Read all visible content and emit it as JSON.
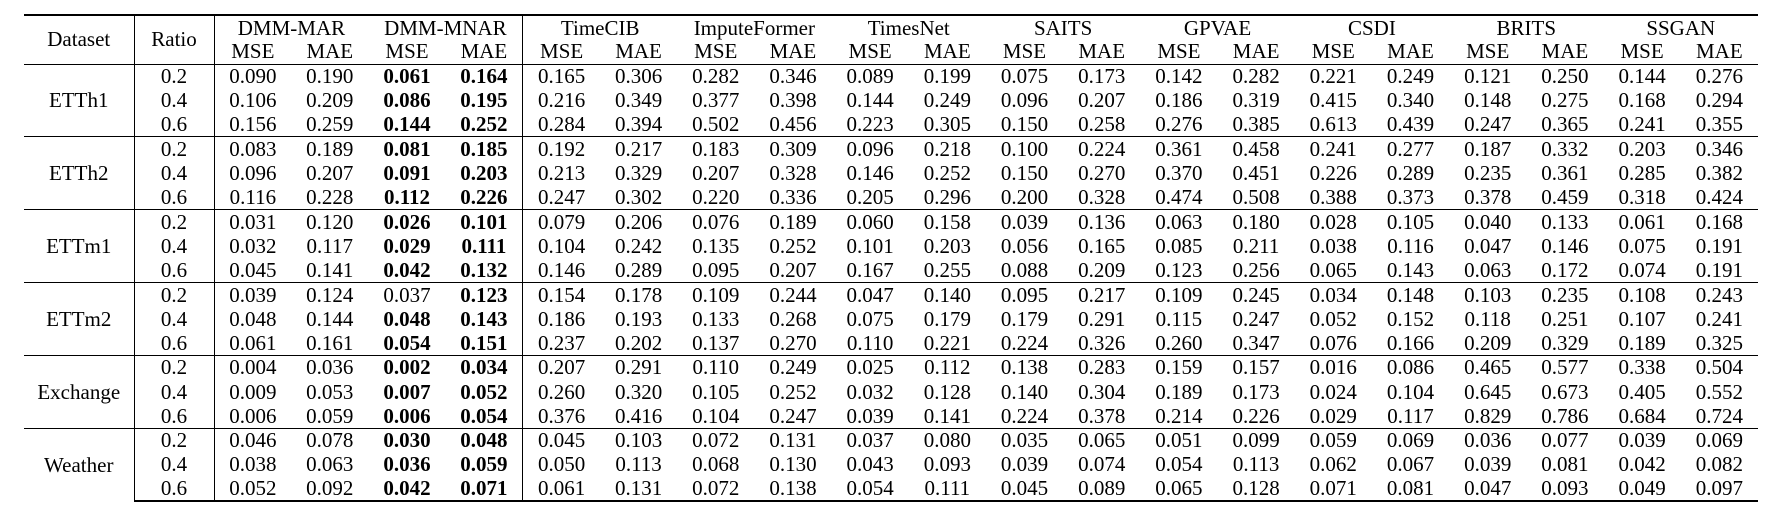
{
  "columns": {
    "dataset": "Dataset",
    "ratio": "Ratio",
    "models": [
      "DMM-MAR",
      "DMM-MNAR",
      "TimeCIB",
      "ImputeFormer",
      "TimesNet",
      "SAITS",
      "GPVAE",
      "CSDI",
      "BRITS",
      "SSGAN"
    ],
    "metrics": [
      "MSE",
      "MAE"
    ]
  },
  "groups": [
    {
      "dataset": "ETTh1",
      "rows": [
        {
          "ratio": "0.2",
          "values": [
            "0.090",
            "0.190",
            "0.061",
            "0.164",
            "0.165",
            "0.306",
            "0.282",
            "0.346",
            "0.089",
            "0.199",
            "0.075",
            "0.173",
            "0.142",
            "0.282",
            "0.221",
            "0.249",
            "0.121",
            "0.250",
            "0.144",
            "0.276"
          ],
          "bold": [
            2,
            3
          ]
        },
        {
          "ratio": "0.4",
          "values": [
            "0.106",
            "0.209",
            "0.086",
            "0.195",
            "0.216",
            "0.349",
            "0.377",
            "0.398",
            "0.144",
            "0.249",
            "0.096",
            "0.207",
            "0.186",
            "0.319",
            "0.415",
            "0.340",
            "0.148",
            "0.275",
            "0.168",
            "0.294"
          ],
          "bold": [
            2,
            3
          ]
        },
        {
          "ratio": "0.6",
          "values": [
            "0.156",
            "0.259",
            "0.144",
            "0.252",
            "0.284",
            "0.394",
            "0.502",
            "0.456",
            "0.223",
            "0.305",
            "0.150",
            "0.258",
            "0.276",
            "0.385",
            "0.613",
            "0.439",
            "0.247",
            "0.365",
            "0.241",
            "0.355"
          ],
          "bold": [
            2,
            3
          ]
        }
      ]
    },
    {
      "dataset": "ETTh2",
      "rows": [
        {
          "ratio": "0.2",
          "values": [
            "0.083",
            "0.189",
            "0.081",
            "0.185",
            "0.192",
            "0.217",
            "0.183",
            "0.309",
            "0.096",
            "0.218",
            "0.100",
            "0.224",
            "0.361",
            "0.458",
            "0.241",
            "0.277",
            "0.187",
            "0.332",
            "0.203",
            "0.346"
          ],
          "bold": [
            2,
            3
          ]
        },
        {
          "ratio": "0.4",
          "values": [
            "0.096",
            "0.207",
            "0.091",
            "0.203",
            "0.213",
            "0.329",
            "0.207",
            "0.328",
            "0.146",
            "0.252",
            "0.150",
            "0.270",
            "0.370",
            "0.451",
            "0.226",
            "0.289",
            "0.235",
            "0.361",
            "0.285",
            "0.382"
          ],
          "bold": [
            2,
            3
          ]
        },
        {
          "ratio": "0.6",
          "values": [
            "0.116",
            "0.228",
            "0.112",
            "0.226",
            "0.247",
            "0.302",
            "0.220",
            "0.336",
            "0.205",
            "0.296",
            "0.200",
            "0.328",
            "0.474",
            "0.508",
            "0.388",
            "0.373",
            "0.378",
            "0.459",
            "0.318",
            "0.424"
          ],
          "bold": [
            2,
            3
          ]
        }
      ]
    },
    {
      "dataset": "ETTm1",
      "rows": [
        {
          "ratio": "0.2",
          "values": [
            "0.031",
            "0.120",
            "0.026",
            "0.101",
            "0.079",
            "0.206",
            "0.076",
            "0.189",
            "0.060",
            "0.158",
            "0.039",
            "0.136",
            "0.063",
            "0.180",
            "0.028",
            "0.105",
            "0.040",
            "0.133",
            "0.061",
            "0.168"
          ],
          "bold": [
            2,
            3
          ]
        },
        {
          "ratio": "0.4",
          "values": [
            "0.032",
            "0.117",
            "0.029",
            "0.111",
            "0.104",
            "0.242",
            "0.135",
            "0.252",
            "0.101",
            "0.203",
            "0.056",
            "0.165",
            "0.085",
            "0.211",
            "0.038",
            "0.116",
            "0.047",
            "0.146",
            "0.075",
            "0.191"
          ],
          "bold": [
            2,
            3
          ]
        },
        {
          "ratio": "0.6",
          "values": [
            "0.045",
            "0.141",
            "0.042",
            "0.132",
            "0.146",
            "0.289",
            "0.095",
            "0.207",
            "0.167",
            "0.255",
            "0.088",
            "0.209",
            "0.123",
            "0.256",
            "0.065",
            "0.143",
            "0.063",
            "0.172",
            "0.074",
            "0.191"
          ],
          "bold": [
            2,
            3
          ]
        }
      ]
    },
    {
      "dataset": "ETTm2",
      "rows": [
        {
          "ratio": "0.2",
          "values": [
            "0.039",
            "0.124",
            "0.037",
            "0.123",
            "0.154",
            "0.178",
            "0.109",
            "0.244",
            "0.047",
            "0.140",
            "0.095",
            "0.217",
            "0.109",
            "0.245",
            "0.034",
            "0.148",
            "0.103",
            "0.235",
            "0.108",
            "0.243"
          ],
          "bold": [
            3
          ]
        },
        {
          "ratio": "0.4",
          "values": [
            "0.048",
            "0.144",
            "0.048",
            "0.143",
            "0.186",
            "0.193",
            "0.133",
            "0.268",
            "0.075",
            "0.179",
            "0.179",
            "0.291",
            "0.115",
            "0.247",
            "0.052",
            "0.152",
            "0.118",
            "0.251",
            "0.107",
            "0.241"
          ],
          "bold": [
            2,
            3
          ]
        },
        {
          "ratio": "0.6",
          "values": [
            "0.061",
            "0.161",
            "0.054",
            "0.151",
            "0.237",
            "0.202",
            "0.137",
            "0.270",
            "0.110",
            "0.221",
            "0.224",
            "0.326",
            "0.260",
            "0.347",
            "0.076",
            "0.166",
            "0.209",
            "0.329",
            "0.189",
            "0.325"
          ],
          "bold": [
            2,
            3
          ]
        }
      ]
    },
    {
      "dataset": "Exchange",
      "rows": [
        {
          "ratio": "0.2",
          "values": [
            "0.004",
            "0.036",
            "0.002",
            "0.034",
            "0.207",
            "0.291",
            "0.110",
            "0.249",
            "0.025",
            "0.112",
            "0.138",
            "0.283",
            "0.159",
            "0.157",
            "0.016",
            "0.086",
            "0.465",
            "0.577",
            "0.338",
            "0.504"
          ],
          "bold": [
            2,
            3
          ]
        },
        {
          "ratio": "0.4",
          "values": [
            "0.009",
            "0.053",
            "0.007",
            "0.052",
            "0.260",
            "0.320",
            "0.105",
            "0.252",
            "0.032",
            "0.128",
            "0.140",
            "0.304",
            "0.189",
            "0.173",
            "0.024",
            "0.104",
            "0.645",
            "0.673",
            "0.405",
            "0.552"
          ],
          "bold": [
            2,
            3
          ]
        },
        {
          "ratio": "0.6",
          "values": [
            "0.006",
            "0.059",
            "0.006",
            "0.054",
            "0.376",
            "0.416",
            "0.104",
            "0.247",
            "0.039",
            "0.141",
            "0.224",
            "0.378",
            "0.214",
            "0.226",
            "0.029",
            "0.117",
            "0.829",
            "0.786",
            "0.684",
            "0.724"
          ],
          "bold": [
            2,
            3
          ]
        }
      ]
    },
    {
      "dataset": "Weather",
      "rows": [
        {
          "ratio": "0.2",
          "values": [
            "0.046",
            "0.078",
            "0.030",
            "0.048",
            "0.045",
            "0.103",
            "0.072",
            "0.131",
            "0.037",
            "0.080",
            "0.035",
            "0.065",
            "0.051",
            "0.099",
            "0.059",
            "0.069",
            "0.036",
            "0.077",
            "0.039",
            "0.069"
          ],
          "bold": [
            2,
            3
          ]
        },
        {
          "ratio": "0.4",
          "values": [
            "0.038",
            "0.063",
            "0.036",
            "0.059",
            "0.050",
            "0.113",
            "0.068",
            "0.130",
            "0.043",
            "0.093",
            "0.039",
            "0.074",
            "0.054",
            "0.113",
            "0.062",
            "0.067",
            "0.039",
            "0.081",
            "0.042",
            "0.082"
          ],
          "bold": [
            2,
            3
          ]
        },
        {
          "ratio": "0.6",
          "values": [
            "0.052",
            "0.092",
            "0.042",
            "0.071",
            "0.061",
            "0.131",
            "0.072",
            "0.138",
            "0.054",
            "0.111",
            "0.045",
            "0.089",
            "0.065",
            "0.128",
            "0.071",
            "0.081",
            "0.047",
            "0.093",
            "0.049",
            "0.097"
          ],
          "bold": [
            2,
            3
          ]
        }
      ]
    }
  ]
}
